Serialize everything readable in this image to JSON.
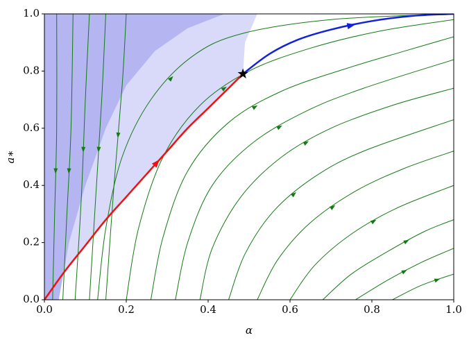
{
  "chart_data": {
    "type": "phase_portrait",
    "xlabel": "α",
    "ylabel": "a∗",
    "xlim": [
      0,
      1
    ],
    "ylim": [
      0,
      1
    ],
    "xticks": [
      {
        "value": 0,
        "label": "0.0"
      },
      0.2,
      0.4,
      0.6,
      0.8,
      {
        "value": 1,
        "label": "1.0"
      }
    ],
    "yticks": [
      {
        "value": 0,
        "label": "0.0"
      },
      0.2,
      0.4,
      0.6,
      0.8,
      {
        "value": 1,
        "label": "1.0"
      }
    ],
    "regions": [
      {
        "color": "#d9d9fa",
        "x": [
          0,
          0.05,
          0.1,
          0.15,
          0.2,
          0.25,
          0.3,
          0.35,
          0.4,
          0.45,
          0.485,
          0.49,
          0.52,
          0
        ],
        "y": [
          0,
          0.1,
          0.19,
          0.28,
          0.36,
          0.44,
          0.52,
          0.6,
          0.67,
          0.74,
          0.79,
          0.9,
          1,
          1
        ]
      },
      {
        "color": "#b5b5f2",
        "x": [
          0,
          0.035,
          0.06,
          0.1,
          0.15,
          0.2,
          0.27,
          0.35,
          0.44,
          0
        ],
        "y": [
          0,
          0,
          0.2,
          0.4,
          0.6,
          0.75,
          0.87,
          0.95,
          1,
          1
        ]
      }
    ],
    "stream_color": "#137a13",
    "streamlines": [
      {
        "x": [
          0.03,
          0.03,
          0.025,
          0.02
        ],
        "y": [
          1,
          0.6,
          0.3,
          0
        ]
      },
      {
        "x": [
          0.07,
          0.065,
          0.055,
          0.045
        ],
        "y": [
          1,
          0.6,
          0.3,
          0
        ]
      },
      {
        "x": [
          0.11,
          0.1,
          0.09,
          0.075
        ],
        "y": [
          1,
          0.7,
          0.35,
          0
        ]
      },
      {
        "x": [
          0.15,
          0.14,
          0.125,
          0.11
        ],
        "y": [
          1,
          0.7,
          0.35,
          0
        ]
      },
      {
        "x": [
          0.2,
          0.19,
          0.17,
          0.15
        ],
        "y": [
          1,
          0.75,
          0.4,
          0
        ]
      },
      {
        "x": [
          0.13,
          0.15,
          0.19,
          0.26,
          0.36,
          0.48,
          0.7,
          1.0
        ],
        "y": [
          0,
          0.25,
          0.5,
          0.7,
          0.85,
          0.93,
          0.98,
          1.0
        ]
      },
      {
        "x": [
          0.2,
          0.23,
          0.29,
          0.38,
          0.5,
          0.65,
          0.82,
          1.0
        ],
        "y": [
          0,
          0.25,
          0.5,
          0.68,
          0.8,
          0.88,
          0.94,
          0.98
        ]
      },
      {
        "x": [
          0.26,
          0.29,
          0.35,
          0.45,
          0.58,
          0.74,
          0.88,
          1.0
        ],
        "y": [
          0,
          0.22,
          0.45,
          0.62,
          0.73,
          0.81,
          0.87,
          0.92
        ]
      },
      {
        "x": [
          0.32,
          0.35,
          0.41,
          0.51,
          0.64,
          0.78,
          1.0
        ],
        "y": [
          0,
          0.2,
          0.4,
          0.55,
          0.66,
          0.74,
          0.84
        ]
      },
      {
        "x": [
          0.38,
          0.41,
          0.48,
          0.58,
          0.7,
          0.85,
          1.0
        ],
        "y": [
          0,
          0.18,
          0.36,
          0.5,
          0.6,
          0.68,
          0.74
        ]
      },
      {
        "x": [
          0.45,
          0.49,
          0.56,
          0.66,
          0.78,
          1.0
        ],
        "y": [
          0,
          0.16,
          0.31,
          0.43,
          0.52,
          0.63
        ]
      },
      {
        "x": [
          0.52,
          0.57,
          0.65,
          0.76,
          0.88,
          1.0
        ],
        "y": [
          0,
          0.14,
          0.27,
          0.38,
          0.46,
          0.52
        ]
      },
      {
        "x": [
          0.6,
          0.66,
          0.75,
          0.86,
          1.0
        ],
        "y": [
          0,
          0.12,
          0.23,
          0.32,
          0.4
        ]
      },
      {
        "x": [
          0.68,
          0.75,
          0.84,
          0.93,
          1.0
        ],
        "y": [
          0,
          0.09,
          0.17,
          0.24,
          0.28
        ]
      },
      {
        "x": [
          0.76,
          0.84,
          0.92,
          1.0
        ],
        "y": [
          0,
          0.07,
          0.13,
          0.18
        ]
      },
      {
        "x": [
          0.85,
          0.92,
          1.0
        ],
        "y": [
          0,
          0.05,
          0.09
        ]
      }
    ],
    "curves": [
      {
        "color": "#ee1111",
        "x": [
          0,
          0.05,
          0.1,
          0.15,
          0.2,
          0.25,
          0.3,
          0.35,
          0.4,
          0.45,
          0.485
        ],
        "y": [
          0,
          0.1,
          0.19,
          0.28,
          0.36,
          0.44,
          0.52,
          0.6,
          0.67,
          0.74,
          0.79
        ]
      },
      {
        "color": "#1122dd",
        "x": [
          0.485,
          0.55,
          0.62,
          0.7,
          0.8,
          0.9,
          1.0
        ],
        "y": [
          0.79,
          0.86,
          0.91,
          0.945,
          0.975,
          0.993,
          1.0
        ]
      }
    ],
    "equilibrium": {
      "x": 0.485,
      "y": 0.79
    }
  }
}
